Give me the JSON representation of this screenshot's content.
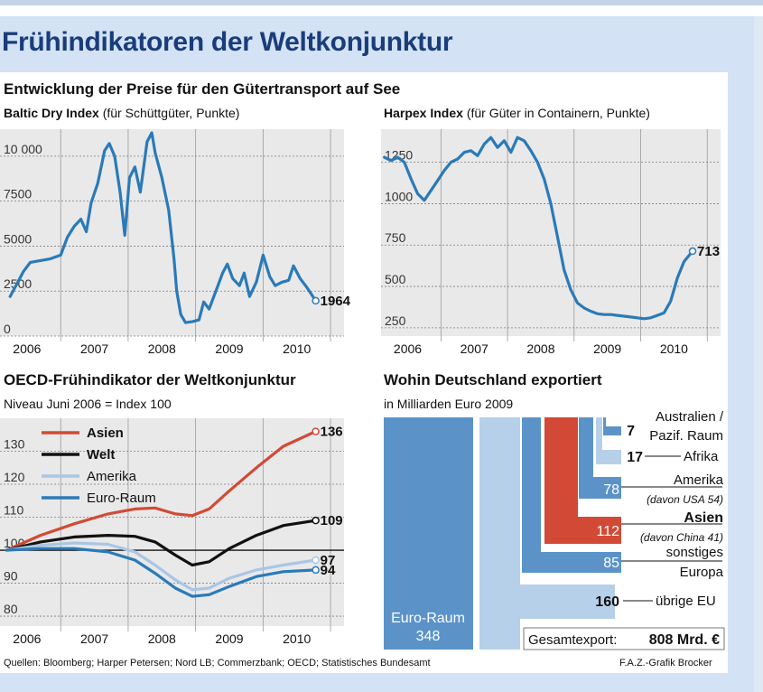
{
  "title": "Frühindikatoren der Weltkonjunktur",
  "section_title": "Entwicklung der Preise für den Gütertransport auf See",
  "chart_data": [
    {
      "id": "baltic",
      "type": "line",
      "title_bold": "Baltic Dry Index",
      "title_rest": " (für Schüttgüter, Punkte)",
      "x_ticks": [
        "2006",
        "2007",
        "2008",
        "2009",
        "2010"
      ],
      "y_ticks": [
        "0",
        "2500",
        "5000",
        "7500",
        "10 000"
      ],
      "ylim": [
        0,
        11500
      ],
      "xlim": [
        2005.6,
        2010.7
      ],
      "end_label": "1964",
      "series": [
        {
          "color": "#2a7ab8",
          "points": [
            [
              2005.75,
              2200
            ],
            [
              2005.85,
              2900
            ],
            [
              2005.95,
              3600
            ],
            [
              2006.05,
              4100
            ],
            [
              2006.2,
              4200
            ],
            [
              2006.35,
              4300
            ],
            [
              2006.5,
              4500
            ],
            [
              2006.6,
              5500
            ],
            [
              2006.7,
              6100
            ],
            [
              2006.8,
              6500
            ],
            [
              2006.88,
              5800
            ],
            [
              2006.95,
              7400
            ],
            [
              2007.05,
              8500
            ],
            [
              2007.15,
              10300
            ],
            [
              2007.22,
              10700
            ],
            [
              2007.3,
              10000
            ],
            [
              2007.38,
              8000
            ],
            [
              2007.45,
              5600
            ],
            [
              2007.52,
              8800
            ],
            [
              2007.6,
              9400
            ],
            [
              2007.68,
              8000
            ],
            [
              2007.78,
              10800
            ],
            [
              2007.85,
              11300
            ],
            [
              2007.9,
              10200
            ],
            [
              2008.0,
              8800
            ],
            [
              2008.1,
              7000
            ],
            [
              2008.18,
              4300
            ],
            [
              2008.22,
              2500
            ],
            [
              2008.28,
              1200
            ],
            [
              2008.35,
              750
            ],
            [
              2008.45,
              800
            ],
            [
              2008.55,
              900
            ],
            [
              2008.62,
              1900
            ],
            [
              2008.7,
              1500
            ],
            [
              2008.8,
              2500
            ],
            [
              2008.9,
              3500
            ],
            [
              2008.97,
              4000
            ],
            [
              2009.05,
              3200
            ],
            [
              2009.15,
              2800
            ],
            [
              2009.22,
              3500
            ],
            [
              2009.3,
              2200
            ],
            [
              2009.4,
              3000
            ],
            [
              2009.5,
              4500
            ],
            [
              2009.6,
              3300
            ],
            [
              2009.68,
              2800
            ],
            [
              2009.78,
              3000
            ],
            [
              2009.88,
              3100
            ],
            [
              2009.95,
              3900
            ],
            [
              2010.05,
              3200
            ],
            [
              2010.15,
              2700
            ],
            [
              2010.28,
              1964
            ]
          ]
        }
      ]
    },
    {
      "id": "harpex",
      "type": "line",
      "title_bold": "Harpex Index",
      "title_rest": " (für Güter in Containern, Punkte)",
      "x_ticks": [
        "2006",
        "2007",
        "2008",
        "2009",
        "2010"
      ],
      "y_ticks": [
        "250",
        "500",
        "750",
        "1000",
        "1250"
      ],
      "ylim": [
        200,
        1450
      ],
      "xlim": [
        2005.6,
        2010.7
      ],
      "end_label": "713",
      "series": [
        {
          "color": "#2a7ab8",
          "points": [
            [
              2005.65,
              1280
            ],
            [
              2005.75,
              1260
            ],
            [
              2005.85,
              1280
            ],
            [
              2005.95,
              1250
            ],
            [
              2006.05,
              1150
            ],
            [
              2006.15,
              1060
            ],
            [
              2006.25,
              1020
            ],
            [
              2006.35,
              1080
            ],
            [
              2006.45,
              1140
            ],
            [
              2006.55,
              1200
            ],
            [
              2006.65,
              1250
            ],
            [
              2006.75,
              1270
            ],
            [
              2006.85,
              1310
            ],
            [
              2006.95,
              1320
            ],
            [
              2007.05,
              1290
            ],
            [
              2007.15,
              1360
            ],
            [
              2007.25,
              1400
            ],
            [
              2007.35,
              1340
            ],
            [
              2007.45,
              1380
            ],
            [
              2007.55,
              1310
            ],
            [
              2007.65,
              1400
            ],
            [
              2007.75,
              1380
            ],
            [
              2007.85,
              1320
            ],
            [
              2007.95,
              1250
            ],
            [
              2008.05,
              1150
            ],
            [
              2008.15,
              1000
            ],
            [
              2008.25,
              800
            ],
            [
              2008.35,
              600
            ],
            [
              2008.45,
              480
            ],
            [
              2008.55,
              400
            ],
            [
              2008.65,
              370
            ],
            [
              2008.75,
              350
            ],
            [
              2008.85,
              335
            ],
            [
              2008.95,
              330
            ],
            [
              2009.05,
              330
            ],
            [
              2009.15,
              325
            ],
            [
              2009.25,
              320
            ],
            [
              2009.35,
              315
            ],
            [
              2009.45,
              310
            ],
            [
              2009.55,
              305
            ],
            [
              2009.65,
              310
            ],
            [
              2009.75,
              325
            ],
            [
              2009.85,
              340
            ],
            [
              2009.95,
              410
            ],
            [
              2010.05,
              550
            ],
            [
              2010.15,
              650
            ],
            [
              2010.28,
              713
            ]
          ]
        }
      ]
    },
    {
      "id": "oecd",
      "type": "line",
      "title": "OECD-Frühindikator der Weltkonjunktur",
      "subtitle": "Niveau Juni 2006 = Index 100",
      "x_ticks": [
        "2006",
        "2007",
        "2008",
        "2009",
        "2010"
      ],
      "y_ticks": [
        "80",
        "90",
        "100",
        "110",
        "120",
        "130"
      ],
      "ylim": [
        77,
        140
      ],
      "xlim": [
        2005.6,
        2010.7
      ],
      "baseline": 100,
      "series": [
        {
          "name": "Asien",
          "color": "#d24a35",
          "end_label": "136",
          "points": [
            [
              2005.7,
              100
            ],
            [
              2006.2,
              104.5
            ],
            [
              2006.7,
              108
            ],
            [
              2007.2,
              111
            ],
            [
              2007.6,
              112.5
            ],
            [
              2007.9,
              112.8
            ],
            [
              2008.2,
              111
            ],
            [
              2008.45,
              110.5
            ],
            [
              2008.7,
              112.5
            ],
            [
              2009.0,
              118
            ],
            [
              2009.4,
              125
            ],
            [
              2009.8,
              131.5
            ],
            [
              2010.28,
              136
            ]
          ]
        },
        {
          "name": "Welt",
          "color": "#111111",
          "end_label": "109",
          "points": [
            [
              2005.7,
              100
            ],
            [
              2006.2,
              102.5
            ],
            [
              2006.7,
              104
            ],
            [
              2007.2,
              104.5
            ],
            [
              2007.6,
              104.2
            ],
            [
              2007.9,
              102.5
            ],
            [
              2008.2,
              98.5
            ],
            [
              2008.45,
              95.5
            ],
            [
              2008.7,
              96.5
            ],
            [
              2009.0,
              100.5
            ],
            [
              2009.4,
              104.5
            ],
            [
              2009.8,
              107.5
            ],
            [
              2010.28,
              109
            ]
          ]
        },
        {
          "name": "Amerika",
          "color": "#a9c6e4",
          "end_label": "97",
          "points": [
            [
              2005.7,
              100
            ],
            [
              2006.2,
              101.5
            ],
            [
              2006.7,
              102.2
            ],
            [
              2007.2,
              101.8
            ],
            [
              2007.6,
              99.5
            ],
            [
              2007.9,
              95.5
            ],
            [
              2008.2,
              91
            ],
            [
              2008.45,
              88
            ],
            [
              2008.7,
              88.5
            ],
            [
              2009.0,
              91.5
            ],
            [
              2009.4,
              94
            ],
            [
              2009.8,
              95.5
            ],
            [
              2010.28,
              97
            ]
          ]
        },
        {
          "name": "Euro-Raum",
          "color": "#2a7ab8",
          "end_label": "94",
          "points": [
            [
              2005.7,
              100
            ],
            [
              2006.2,
              100.5
            ],
            [
              2006.7,
              100.5
            ],
            [
              2007.2,
              99.5
            ],
            [
              2007.6,
              97
            ],
            [
              2007.9,
              93
            ],
            [
              2008.2,
              88.5
            ],
            [
              2008.45,
              86
            ],
            [
              2008.7,
              86.5
            ],
            [
              2009.0,
              89
            ],
            [
              2009.4,
              92
            ],
            [
              2009.8,
              93.5
            ],
            [
              2010.28,
              94
            ]
          ]
        }
      ]
    },
    {
      "id": "exports",
      "type": "bar",
      "title": "Wohin Deutschland exportiert",
      "subtitle": "in Milliarden Euro 2009",
      "categories": [
        "Euro-Raum",
        "übrige EU",
        "sonstiges Europa",
        "Amerika",
        "Asien",
        "Afrika",
        "Australien / Pazif. Raum"
      ],
      "values": [
        348,
        160,
        85,
        78,
        112,
        17,
        7
      ],
      "notes": {
        "Amerika": "(davon USA 54)",
        "Asien": "(davon China 41)"
      },
      "labels": {
        "euro_name": "Euro-Raum",
        "euro_value": "348",
        "eu": "übrige EU",
        "eu_value": "160",
        "sonstiges_1": "sonstiges",
        "sonstiges_2": "Europa",
        "sonstiges_value": "85",
        "amerika": "Amerika",
        "amerika_value": "78",
        "amerika_note": "(davon USA 54)",
        "asien": "Asien",
        "asien_value": "112",
        "asien_note": "(davon China 41)",
        "afrika": "Afrika",
        "afrika_value": "17",
        "australien_1": "Australien /",
        "australien_2": "Pazif. Raum",
        "australien_value": "7"
      },
      "total_label": "Gesamtexport:",
      "total_value": "808 Mrd. €"
    }
  ],
  "footer_sources": "Quellen: Bloomberg; Harper Petersen; Nord LB; Commerzbank; OECD; Statistisches Bundesamt",
  "footer_credit": "F.A.Z.-Grafik Brocker",
  "colors": {
    "blue": "#2a7ab8",
    "red": "#d24a35",
    "light_blue": "#a9c6e4",
    "bar_blue": "#5b93c9",
    "title_blue": "#1a3d7a"
  }
}
